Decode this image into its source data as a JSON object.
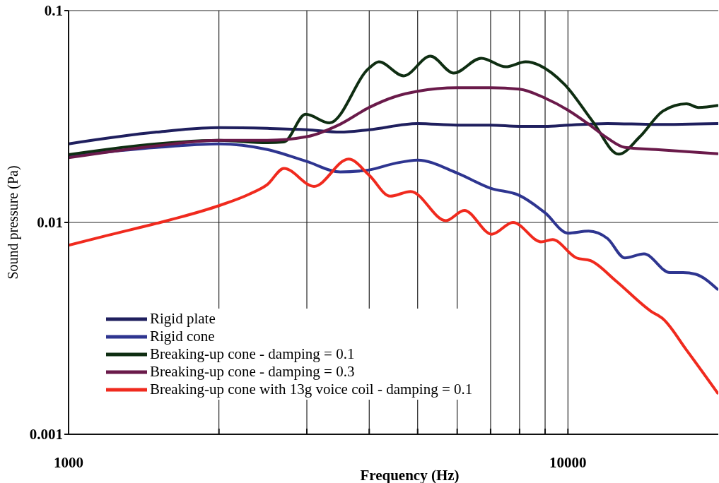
{
  "chart_data": {
    "type": "line",
    "xlabel": "Frequency (Hz)",
    "ylabel": "Sound pressure (Pa)",
    "log": "xy",
    "xlim": [
      1000,
      20000
    ],
    "ylim": [
      0.001,
      0.1
    ],
    "xticks": [
      1000,
      {
        "value": 2000,
        "label": null
      },
      {
        "value": 3000,
        "label": null
      },
      {
        "value": 4000,
        "label": null
      },
      {
        "value": 5000,
        "label": null
      },
      {
        "value": 6000,
        "label": null
      },
      {
        "value": 7000,
        "label": null
      },
      {
        "value": 8000,
        "label": null
      },
      {
        "value": 9000,
        "label": null
      },
      10000
    ],
    "yticks": [
      0.001,
      0.01,
      0.1
    ],
    "grid": true,
    "legend": "bottom left",
    "marker": "none",
    "line_style": "solid",
    "series": [
      {
        "name": "Rigid plate",
        "color": "#1f1f5e",
        "x": [
          1000,
          1500,
          2000,
          2500,
          3000,
          3500,
          4000,
          5000,
          6000,
          7000,
          8000,
          9000,
          10000,
          12000,
          15000,
          20000
        ],
        "values": [
          0.0235,
          0.0267,
          0.028,
          0.0278,
          0.0274,
          0.0267,
          0.0274,
          0.0293,
          0.0288,
          0.0288,
          0.0284,
          0.0284,
          0.0288,
          0.0293,
          0.029,
          0.0293
        ]
      },
      {
        "name": "Rigid cone",
        "color": "#2e3590",
        "x": [
          1000,
          1500,
          2000,
          2500,
          3000,
          3500,
          4000,
          4500,
          5000,
          6000,
          7000,
          8000,
          9000,
          10000,
          11000,
          12000,
          13000,
          14200,
          16000,
          17000,
          18000,
          20000
        ],
        "values": [
          0.0206,
          0.0226,
          0.0235,
          0.0221,
          0.0194,
          0.0173,
          0.0177,
          0.019,
          0.0197,
          0.0171,
          0.0145,
          0.0134,
          0.0111,
          0.0089,
          0.0091,
          0.0084,
          0.0068,
          0.0071,
          0.0058,
          0.0058,
          0.0057,
          0.0048
        ]
      },
      {
        "name": "Breaking-up cone - damping = 0.1",
        "color": "#0f2e12",
        "x": [
          1000,
          1500,
          2000,
          2500,
          2700,
          2983,
          3331,
          3997,
          4182,
          4688,
          5303,
          5904,
          6704,
          7509,
          8229,
          9838,
          11205,
          12637,
          13934,
          15511,
          17277,
          18250,
          20000
        ],
        "values": [
          0.0209,
          0.0235,
          0.0244,
          0.0238,
          0.024,
          0.0324,
          0.0295,
          0.0535,
          0.0573,
          0.0492,
          0.0609,
          0.0507,
          0.0596,
          0.0543,
          0.0573,
          0.0449,
          0.03,
          0.021,
          0.0254,
          0.0336,
          0.0363,
          0.0349,
          0.0357
        ]
      },
      {
        "name": "Breaking-up cone - damping  = 0.3",
        "color": "#6a1a4a",
        "x": [
          1000,
          1500,
          2000,
          2500,
          3000,
          3500,
          4000,
          4500,
          5000,
          6000,
          7000,
          8000,
          9000,
          10000,
          11000,
          12000,
          13000,
          15000,
          20000
        ],
        "values": [
          0.0202,
          0.023,
          0.0244,
          0.0244,
          0.0254,
          0.0291,
          0.0349,
          0.0392,
          0.0416,
          0.0432,
          0.0432,
          0.0426,
          0.0386,
          0.0339,
          0.0291,
          0.025,
          0.0226,
          0.0221,
          0.0211
        ]
      },
      {
        "name": "Breaking-up cone with 13g voice coil - damping = 0.1",
        "color": "#f02a1e",
        "x": [
          1000,
          1200,
          1500,
          2000,
          2300,
          2500,
          2700,
          3100,
          3637,
          4000,
          4406,
          4842,
          5696,
          6199,
          7039,
          7761,
          8839,
          9311,
          10400,
          11100,
          12470,
          14680,
          15510,
          17270,
          20000
        ],
        "values": [
          0.0078,
          0.0087,
          0.0099,
          0.012,
          0.0136,
          0.0151,
          0.018,
          0.0148,
          0.0199,
          0.0167,
          0.0133,
          0.014,
          0.0102,
          0.0114,
          0.0088,
          0.01,
          0.0081,
          0.0083,
          0.0068,
          0.0066,
          0.0053,
          0.0038,
          0.0035,
          0.0025,
          0.00155
        ]
      }
    ]
  }
}
